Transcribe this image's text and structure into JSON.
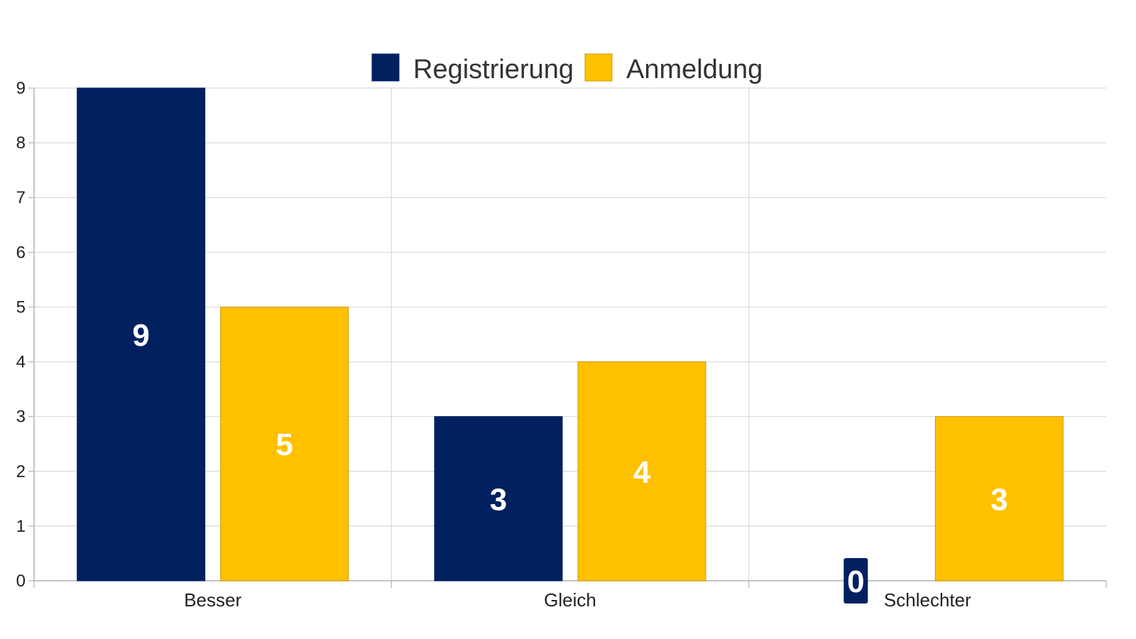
{
  "chart_data": {
    "type": "bar",
    "categories": [
      "Besser",
      "Gleich",
      "Schlechter"
    ],
    "series": [
      {
        "name": "Registrierung",
        "values": [
          9,
          3,
          0
        ],
        "color": "#002060"
      },
      {
        "name": "Anmeldung",
        "values": [
          5,
          4,
          3
        ],
        "color": "#FFC000"
      }
    ],
    "ylim": [
      0,
      9
    ],
    "yticks": [
      0,
      1,
      2,
      3,
      4,
      5,
      6,
      7,
      8,
      9
    ],
    "grid": true,
    "legend_position": "top-center",
    "data_labels": true
  }
}
